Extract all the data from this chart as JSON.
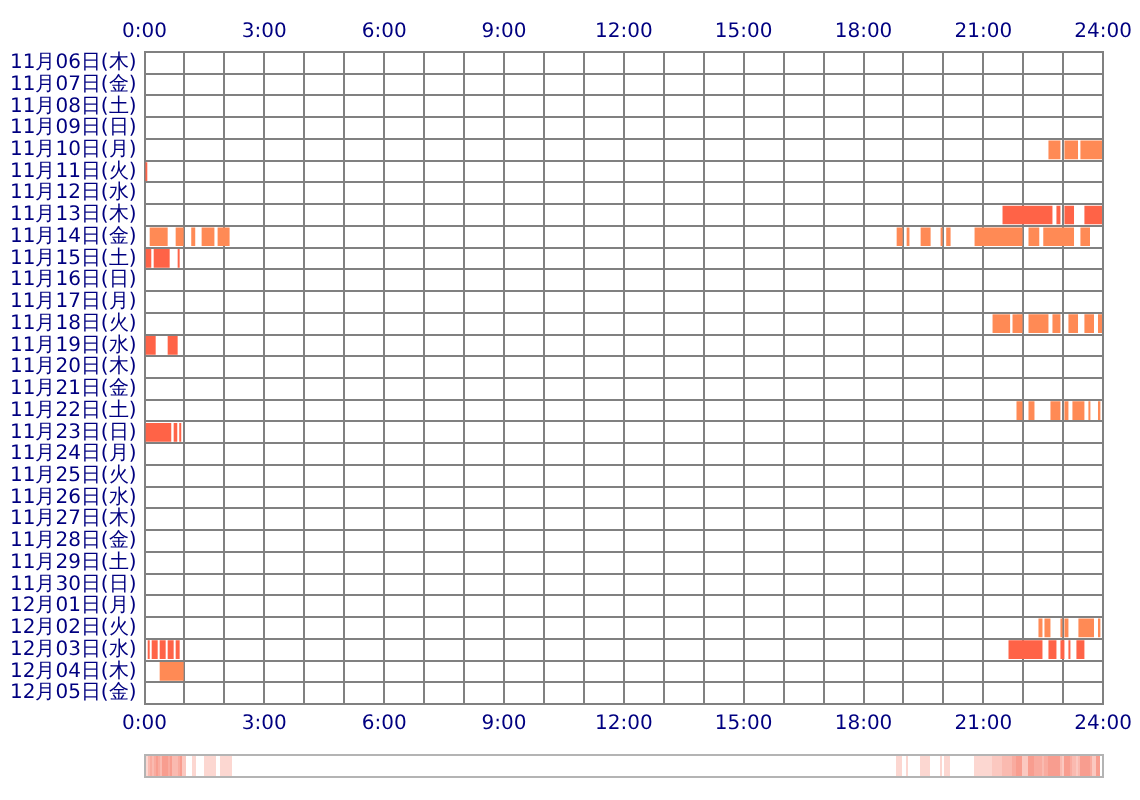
{
  "chart_data": {
    "type": "bar",
    "orientation": "horizontal",
    "categories": [
      "11月06日(木)",
      "11月07日(金)",
      "11月08日(土)",
      "11月09日(日)",
      "11月10日(月)",
      "11月11日(火)",
      "11月12日(水)",
      "11月13日(木)",
      "11月14日(金)",
      "11月15日(土)",
      "11月16日(日)",
      "11月17日(月)",
      "11月18日(火)",
      "11月19日(水)",
      "11月20日(木)",
      "11月21日(金)",
      "11月22日(土)",
      "11月23日(日)",
      "11月24日(月)",
      "11月25日(火)",
      "11月26日(水)",
      "11月27日(木)",
      "11月28日(金)",
      "11月29日(土)",
      "11月30日(日)",
      "12月01日(月)",
      "12月02日(火)",
      "12月03日(水)",
      "12月04日(木)",
      "12月05日(金)"
    ],
    "series": [
      {
        "base": [
          null,
          null,
          null,
          null,
          22.63,
          0,
          null,
          21.48,
          0.13,
          0.03,
          null,
          null,
          21.23,
          0.03,
          null,
          null,
          21.83,
          0.03,
          null,
          null,
          null,
          null,
          null,
          null,
          null,
          null,
          22.38,
          0.08,
          0.38,
          null
        ],
        "values": [
          null,
          null,
          null,
          null,
          0.3,
          0.07,
          null,
          1.25,
          0.45,
          0.14,
          null,
          null,
          0.44,
          0.25,
          null,
          null,
          0.15,
          0.64,
          null,
          null,
          null,
          null,
          null,
          null,
          null,
          null,
          0.1,
          0.05,
          0.6,
          null
        ],
        "colors": [
          null,
          null,
          null,
          null,
          "#ff8a55",
          "#ff6347",
          null,
          "#ff6347",
          "#ff8a55",
          "#ff6347",
          null,
          null,
          "#ff8a55",
          "#ff6347",
          null,
          null,
          "#ff8a55",
          "#ff6347",
          null,
          null,
          null,
          null,
          null,
          null,
          null,
          null,
          "#ff8a55",
          "#ff6347",
          "#ff8a55",
          null
        ]
      },
      {
        "base": [
          null,
          null,
          null,
          null,
          23.03,
          null,
          null,
          22.83,
          0.78,
          0.23,
          null,
          null,
          21.73,
          0.58,
          null,
          null,
          22.13,
          0.73,
          null,
          null,
          null,
          null,
          null,
          null,
          null,
          null,
          22.53,
          0.18,
          null,
          null
        ],
        "values": [
          null,
          null,
          null,
          null,
          0.34,
          null,
          null,
          0.1,
          0.2,
          0.4,
          null,
          null,
          0.25,
          0.25,
          null,
          null,
          0.15,
          0.09,
          null,
          null,
          null,
          null,
          null,
          null,
          null,
          null,
          0.15,
          0.15,
          null,
          null
        ],
        "colors": [
          null,
          null,
          null,
          null,
          "#ff8a55",
          null,
          null,
          "#ff6347",
          "#ff8a55",
          "#ff6347",
          null,
          null,
          "#ff8a55",
          "#ff6347",
          null,
          null,
          "#ff8a55",
          "#ff6347",
          null,
          null,
          null,
          null,
          null,
          null,
          null,
          null,
          "#ff8a55",
          "#ff6347",
          null,
          null
        ]
      },
      {
        "base": [
          null,
          null,
          null,
          null,
          23.43,
          null,
          null,
          23.03,
          1.17,
          0.83,
          null,
          null,
          22.13,
          null,
          null,
          null,
          22.68,
          0.87,
          null,
          null,
          null,
          null,
          null,
          null,
          null,
          null,
          22.93,
          0.38,
          null,
          null
        ],
        "values": [
          null,
          null,
          null,
          null,
          0.54,
          null,
          null,
          0.24,
          0.1,
          0.05,
          null,
          null,
          0.5,
          null,
          null,
          null,
          0.25,
          0.05,
          null,
          null,
          null,
          null,
          null,
          null,
          null,
          null,
          0.05,
          0.15,
          null,
          null
        ],
        "colors": [
          null,
          null,
          null,
          null,
          "#ff8a55",
          null,
          null,
          "#ff6347",
          "#ff8a55",
          "#ff6347",
          null,
          null,
          "#ff8a55",
          null,
          null,
          null,
          "#ff8a55",
          "#ff6347",
          null,
          null,
          null,
          null,
          null,
          null,
          null,
          null,
          "#ff8a55",
          "#ff6347",
          null,
          null
        ]
      },
      {
        "base": [
          null,
          null,
          null,
          null,
          null,
          null,
          null,
          23.53,
          1.43,
          null,
          null,
          null,
          22.73,
          null,
          null,
          null,
          23.03,
          null,
          null,
          null,
          null,
          null,
          null,
          null,
          null,
          null,
          23.03,
          0.58,
          null,
          null
        ],
        "values": [
          null,
          null,
          null,
          null,
          null,
          null,
          null,
          0.44,
          0.32,
          null,
          null,
          null,
          0.2,
          null,
          null,
          null,
          0.1,
          null,
          null,
          null,
          null,
          null,
          null,
          null,
          null,
          null,
          0.1,
          0.15,
          null,
          null
        ],
        "colors": [
          null,
          null,
          null,
          null,
          null,
          null,
          null,
          "#ff6347",
          "#ff8a55",
          null,
          null,
          null,
          "#ff8a55",
          null,
          null,
          null,
          "#ff8a55",
          null,
          null,
          null,
          null,
          null,
          null,
          null,
          null,
          null,
          "#ff8a55",
          "#ff6347",
          null,
          null
        ]
      },
      {
        "base": [
          null,
          null,
          null,
          null,
          null,
          null,
          null,
          null,
          1.83,
          null,
          null,
          null,
          23.13,
          null,
          null,
          null,
          23.23,
          null,
          null,
          null,
          null,
          null,
          null,
          null,
          null,
          null,
          23.38,
          0.78,
          null,
          null
        ],
        "values": [
          null,
          null,
          null,
          null,
          null,
          null,
          null,
          null,
          0.3,
          null,
          null,
          null,
          0.24,
          null,
          null,
          null,
          0.3,
          null,
          null,
          null,
          null,
          null,
          null,
          null,
          null,
          null,
          0.39,
          0.1,
          null,
          null
        ],
        "colors": [
          null,
          null,
          null,
          null,
          null,
          null,
          null,
          null,
          "#ff8a55",
          null,
          null,
          null,
          "#ff8a55",
          null,
          null,
          null,
          "#ff8a55",
          null,
          null,
          null,
          null,
          null,
          null,
          null,
          null,
          null,
          "#ff8a55",
          "#ff6347",
          null,
          null
        ]
      },
      {
        "base": [
          null,
          null,
          null,
          null,
          null,
          null,
          null,
          null,
          18.83,
          null,
          null,
          null,
          23.53,
          null,
          null,
          null,
          23.63,
          null,
          null,
          null,
          null,
          null,
          null,
          null,
          null,
          null,
          23.87,
          21.63,
          null,
          null
        ],
        "values": [
          null,
          null,
          null,
          null,
          null,
          null,
          null,
          null,
          0.15,
          null,
          null,
          null,
          0.24,
          null,
          null,
          null,
          0.05,
          null,
          null,
          null,
          null,
          null,
          null,
          null,
          null,
          null,
          0.06,
          0.85,
          null,
          null
        ],
        "colors": [
          null,
          null,
          null,
          null,
          null,
          null,
          null,
          null,
          "#ff8a55",
          null,
          null,
          null,
          "#ff8a55",
          null,
          null,
          null,
          "#ff8a55",
          null,
          null,
          null,
          null,
          null,
          null,
          null,
          null,
          null,
          "#ff8a55",
          "#ff6347",
          null,
          null
        ]
      },
      {
        "base": [
          null,
          null,
          null,
          null,
          null,
          null,
          null,
          null,
          19.08,
          null,
          null,
          null,
          23.87,
          null,
          null,
          null,
          23.87,
          null,
          null,
          null,
          null,
          null,
          null,
          null,
          null,
          null,
          null,
          22.63,
          null,
          null
        ],
        "values": [
          null,
          null,
          null,
          null,
          null,
          null,
          null,
          null,
          0.07,
          null,
          null,
          null,
          0.1,
          null,
          null,
          null,
          0.06,
          null,
          null,
          null,
          null,
          null,
          null,
          null,
          null,
          null,
          null,
          0.2,
          null,
          null
        ],
        "colors": [
          null,
          null,
          null,
          null,
          null,
          null,
          null,
          null,
          "#ff8a55",
          null,
          null,
          null,
          "#ff8a55",
          null,
          null,
          null,
          "#ff8a55",
          null,
          null,
          null,
          null,
          null,
          null,
          null,
          null,
          null,
          null,
          "#ff6347",
          null,
          null
        ]
      },
      {
        "base": [
          null,
          null,
          null,
          null,
          null,
          null,
          null,
          null,
          19.43,
          null,
          null,
          null,
          null,
          null,
          null,
          null,
          null,
          null,
          null,
          null,
          null,
          null,
          null,
          null,
          null,
          null,
          null,
          22.93,
          null,
          null
        ],
        "values": [
          null,
          null,
          null,
          null,
          null,
          null,
          null,
          null,
          0.25,
          null,
          null,
          null,
          null,
          null,
          null,
          null,
          null,
          null,
          null,
          null,
          null,
          null,
          null,
          null,
          null,
          null,
          null,
          0.1,
          null,
          null
        ],
        "colors": [
          null,
          null,
          null,
          null,
          null,
          null,
          null,
          null,
          "#ff8a55",
          null,
          null,
          null,
          null,
          null,
          null,
          null,
          null,
          null,
          null,
          null,
          null,
          null,
          null,
          null,
          null,
          null,
          null,
          "#ff6347",
          null,
          null
        ]
      },
      {
        "base": [
          null,
          null,
          null,
          null,
          null,
          null,
          null,
          null,
          19.93,
          null,
          null,
          null,
          null,
          null,
          null,
          null,
          null,
          null,
          null,
          null,
          null,
          null,
          null,
          null,
          null,
          null,
          null,
          23.13,
          null,
          null
        ],
        "values": [
          null,
          null,
          null,
          null,
          null,
          null,
          null,
          null,
          0.05,
          null,
          null,
          null,
          null,
          null,
          null,
          null,
          null,
          null,
          null,
          null,
          null,
          null,
          null,
          null,
          null,
          null,
          null,
          0.05,
          null,
          null
        ],
        "colors": [
          null,
          null,
          null,
          null,
          null,
          null,
          null,
          null,
          "#ff8a55",
          null,
          null,
          null,
          null,
          null,
          null,
          null,
          null,
          null,
          null,
          null,
          null,
          null,
          null,
          null,
          null,
          null,
          null,
          "#ff6347",
          null,
          null
        ]
      },
      {
        "base": [
          null,
          null,
          null,
          null,
          null,
          null,
          null,
          null,
          20.07,
          null,
          null,
          null,
          null,
          null,
          null,
          null,
          null,
          null,
          null,
          null,
          null,
          null,
          null,
          null,
          null,
          null,
          null,
          23.33,
          null,
          null
        ],
        "values": [
          null,
          null,
          null,
          null,
          null,
          null,
          null,
          null,
          0.11,
          null,
          null,
          null,
          null,
          null,
          null,
          null,
          null,
          null,
          null,
          null,
          null,
          null,
          null,
          null,
          null,
          null,
          null,
          0.2,
          null,
          null
        ],
        "colors": [
          null,
          null,
          null,
          null,
          null,
          null,
          null,
          null,
          "#ff8a55",
          null,
          null,
          null,
          null,
          null,
          null,
          null,
          null,
          null,
          null,
          null,
          null,
          null,
          null,
          null,
          null,
          null,
          null,
          "#ff6347",
          null,
          null
        ]
      },
      {
        "base": [
          null,
          null,
          null,
          null,
          null,
          null,
          null,
          null,
          20.78,
          null,
          null,
          null,
          null,
          null,
          null,
          null,
          null,
          null,
          null,
          null,
          null,
          null,
          null,
          null,
          null,
          null,
          null,
          null,
          null,
          null
        ],
        "values": [
          null,
          null,
          null,
          null,
          null,
          null,
          null,
          null,
          1.2,
          null,
          null,
          null,
          null,
          null,
          null,
          null,
          null,
          null,
          null,
          null,
          null,
          null,
          null,
          null,
          null,
          null,
          null,
          null,
          null,
          null
        ],
        "colors": [
          null,
          null,
          null,
          null,
          null,
          null,
          null,
          null,
          "#ff8a55",
          null,
          null,
          null,
          null,
          null,
          null,
          null,
          null,
          null,
          null,
          null,
          null,
          null,
          null,
          null,
          null,
          null,
          null,
          null,
          null,
          null
        ]
      },
      {
        "base": [
          null,
          null,
          null,
          null,
          null,
          null,
          null,
          null,
          22.13,
          null,
          null,
          null,
          null,
          null,
          null,
          null,
          null,
          null,
          null,
          null,
          null,
          null,
          null,
          null,
          null,
          null,
          null,
          null,
          null,
          null
        ],
        "values": [
          null,
          null,
          null,
          null,
          null,
          null,
          null,
          null,
          0.27,
          null,
          null,
          null,
          null,
          null,
          null,
          null,
          null,
          null,
          null,
          null,
          null,
          null,
          null,
          null,
          null,
          null,
          null,
          null,
          null,
          null
        ],
        "colors": [
          null,
          null,
          null,
          null,
          null,
          null,
          null,
          null,
          "#ff8a55",
          null,
          null,
          null,
          null,
          null,
          null,
          null,
          null,
          null,
          null,
          null,
          null,
          null,
          null,
          null,
          null,
          null,
          null,
          null,
          null,
          null
        ]
      },
      {
        "base": [
          null,
          null,
          null,
          null,
          null,
          null,
          null,
          null,
          22.5,
          null,
          null,
          null,
          null,
          null,
          null,
          null,
          null,
          null,
          null,
          null,
          null,
          null,
          null,
          null,
          null,
          null,
          null,
          null,
          null,
          null
        ],
        "values": [
          null,
          null,
          null,
          null,
          null,
          null,
          null,
          null,
          0.77,
          null,
          null,
          null,
          null,
          null,
          null,
          null,
          null,
          null,
          null,
          null,
          null,
          null,
          null,
          null,
          null,
          null,
          null,
          null,
          null,
          null
        ],
        "colors": [
          null,
          null,
          null,
          null,
          null,
          null,
          null,
          null,
          "#ff8a55",
          null,
          null,
          null,
          null,
          null,
          null,
          null,
          null,
          null,
          null,
          null,
          null,
          null,
          null,
          null,
          null,
          null,
          null,
          null,
          null,
          null
        ]
      },
      {
        "base": [
          null,
          null,
          null,
          null,
          null,
          null,
          null,
          null,
          23.43,
          null,
          null,
          null,
          null,
          null,
          null,
          null,
          null,
          null,
          null,
          null,
          null,
          null,
          null,
          null,
          null,
          null,
          null,
          null,
          null,
          null
        ],
        "values": [
          null,
          null,
          null,
          null,
          null,
          null,
          null,
          null,
          0.24,
          null,
          null,
          null,
          null,
          null,
          null,
          null,
          null,
          null,
          null,
          null,
          null,
          null,
          null,
          null,
          null,
          null,
          null,
          null,
          null,
          null
        ],
        "colors": [
          null,
          null,
          null,
          null,
          null,
          null,
          null,
          null,
          "#ff8a55",
          null,
          null,
          null,
          null,
          null,
          null,
          null,
          null,
          null,
          null,
          null,
          null,
          null,
          null,
          null,
          null,
          null,
          null,
          null,
          null,
          null
        ]
      }
    ],
    "xlim": [
      0,
      24
    ],
    "xticks": [
      {
        "value": 0,
        "label": "0:00"
      },
      {
        "value": 1,
        "label": null
      },
      {
        "value": 2,
        "label": null
      },
      {
        "value": 3,
        "label": "3:00"
      },
      {
        "value": 4,
        "label": null
      },
      {
        "value": 5,
        "label": null
      },
      {
        "value": 6,
        "label": "6:00"
      },
      {
        "value": 7,
        "label": null
      },
      {
        "value": 8,
        "label": null
      },
      {
        "value": 9,
        "label": "9:00"
      },
      {
        "value": 10,
        "label": null
      },
      {
        "value": 11,
        "label": null
      },
      {
        "value": 12,
        "label": "12:00"
      },
      {
        "value": 13,
        "label": null
      },
      {
        "value": 14,
        "label": null
      },
      {
        "value": 15,
        "label": "15:00"
      },
      {
        "value": 16,
        "label": null
      },
      {
        "value": 17,
        "label": null
      },
      {
        "value": 18,
        "label": "18:00"
      },
      {
        "value": 19,
        "label": null
      },
      {
        "value": 20,
        "label": null
      },
      {
        "value": 21,
        "label": "21:00"
      },
      {
        "value": 22,
        "label": null
      },
      {
        "value": 23,
        "label": null
      },
      {
        "value": 24,
        "label": "24:00"
      }
    ],
    "x2lim": [
      0,
      24
    ],
    "x2ticks": [
      {
        "value": 0,
        "label": "0:00"
      },
      {
        "value": 1,
        "label": null
      },
      {
        "value": 2,
        "label": null
      },
      {
        "value": 3,
        "label": "3:00"
      },
      {
        "value": 4,
        "label": null
      },
      {
        "value": 5,
        "label": null
      },
      {
        "value": 6,
        "label": "6:00"
      },
      {
        "value": 7,
        "label": null
      },
      {
        "value": 8,
        "label": null
      },
      {
        "value": 9,
        "label": "9:00"
      },
      {
        "value": 10,
        "label": null
      },
      {
        "value": 11,
        "label": null
      },
      {
        "value": 12,
        "label": "12:00"
      },
      {
        "value": 13,
        "label": null
      },
      {
        "value": 14,
        "label": null
      },
      {
        "value": 15,
        "label": "15:00"
      },
      {
        "value": 16,
        "label": null
      },
      {
        "value": 17,
        "label": null
      },
      {
        "value": 18,
        "label": "18:00"
      },
      {
        "value": 19,
        "label": null
      },
      {
        "value": 20,
        "label": null
      },
      {
        "value": 21,
        "label": "21:00"
      },
      {
        "value": 22,
        "label": null
      },
      {
        "value": 23,
        "label": null
      },
      {
        "value": 24,
        "label": "24:00"
      }
    ],
    "grid": true
  }
}
